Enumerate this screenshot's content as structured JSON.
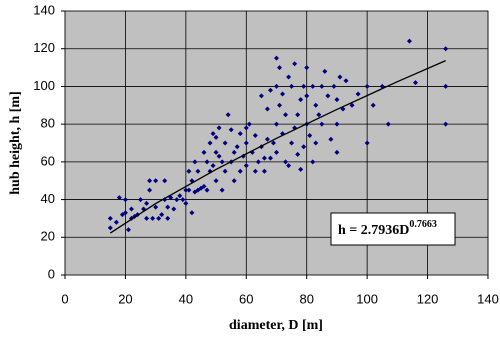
{
  "chart_data": {
    "type": "scatter",
    "xlabel": "diameter, D [m]",
    "ylabel": "hub height, h [m]",
    "xlim": [
      0,
      140
    ],
    "ylim": [
      0,
      140
    ],
    "xticks": [
      0,
      20,
      40,
      60,
      80,
      100,
      120,
      140
    ],
    "yticks": [
      0,
      20,
      40,
      60,
      80,
      100,
      120,
      140
    ],
    "grid": true,
    "plot_background": "#c0c0c0",
    "color": "#000080",
    "x": [
      15,
      15,
      17,
      18,
      19,
      20,
      20,
      21,
      22,
      22,
      23,
      24,
      25,
      26,
      27,
      27,
      28,
      28,
      29,
      30,
      30,
      31,
      32,
      33,
      33,
      34,
      34,
      35,
      36,
      37,
      38,
      39,
      40,
      40,
      41,
      41,
      42,
      42,
      43,
      43,
      44,
      44,
      45,
      46,
      46,
      47,
      47,
      48,
      48,
      49,
      49,
      50,
      50,
      50,
      51,
      51,
      52,
      52,
      53,
      53,
      54,
      55,
      55,
      56,
      56,
      57,
      58,
      58,
      59,
      60,
      60,
      60,
      61,
      62,
      63,
      63,
      64,
      65,
      65,
      66,
      66,
      67,
      67,
      68,
      68,
      69,
      70,
      70,
      70,
      70,
      71,
      71,
      72,
      72,
      73,
      73,
      74,
      74,
      75,
      75,
      76,
      76,
      77,
      77,
      78,
      78,
      79,
      79,
      80,
      80,
      80,
      81,
      82,
      82,
      83,
      83,
      84,
      85,
      85,
      86,
      87,
      88,
      89,
      90,
      90,
      90,
      91,
      92,
      93,
      95,
      97,
      100,
      100,
      102,
      105,
      107,
      114,
      116,
      126,
      126,
      126
    ],
    "values": [
      25,
      30,
      28,
      41,
      32,
      40,
      33,
      24,
      35,
      30,
      31,
      32,
      40,
      35,
      30,
      38,
      45,
      50,
      30,
      36,
      50,
      30,
      32,
      40,
      50,
      36,
      30,
      41,
      35,
      40,
      42,
      40,
      38,
      45,
      45,
      55,
      33,
      50,
      44,
      60,
      45,
      55,
      46,
      47,
      65,
      45,
      60,
      70,
      55,
      58,
      75,
      50,
      65,
      73,
      63,
      78,
      60,
      45,
      55,
      70,
      85,
      60,
      77,
      65,
      50,
      68,
      55,
      75,
      63,
      58,
      70,
      78,
      80,
      65,
      74,
      55,
      60,
      68,
      95,
      55,
      62,
      72,
      88,
      98,
      62,
      70,
      115,
      100,
      80,
      65,
      90,
      110,
      75,
      96,
      85,
      60,
      105,
      58,
      100,
      70,
      112,
      78,
      85,
      64,
      93,
      56,
      100,
      68,
      80,
      95,
      110,
      74,
      60,
      100,
      90,
      70,
      85,
      100,
      80,
      108,
      95,
      72,
      100,
      93,
      65,
      80,
      105,
      88,
      103,
      90,
      96,
      70,
      100,
      90,
      100,
      80,
      124,
      102,
      120,
      100,
      80
    ],
    "trendline": {
      "color": "#000000",
      "x": [
        15,
        30,
        50,
        70,
        90,
        110,
        126
      ],
      "values": [
        22.25,
        37.86,
        56.0,
        72.5,
        87.8,
        102.5,
        113.7
      ]
    },
    "annotation": {
      "text": "h = 2.7936D",
      "superscript": "0.7663"
    }
  }
}
